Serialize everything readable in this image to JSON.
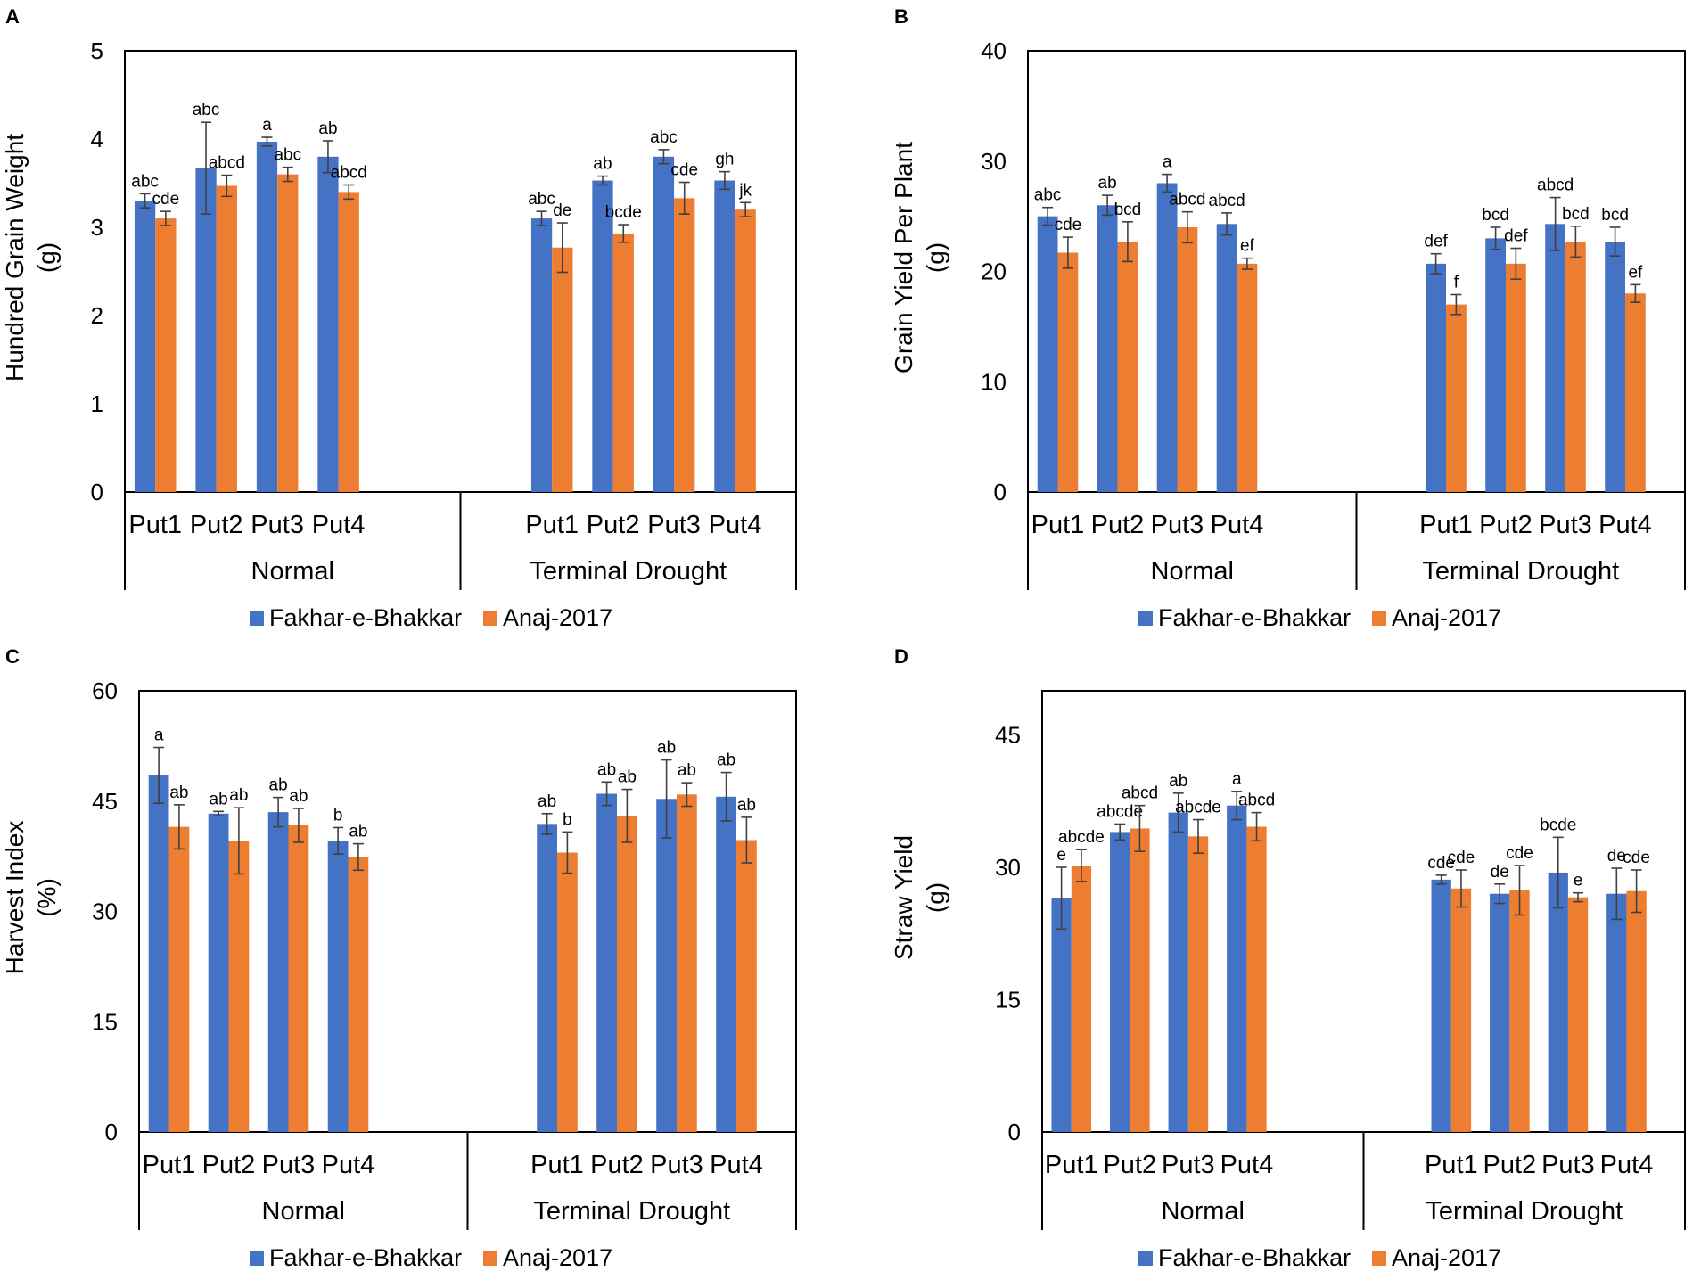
{
  "colors": {
    "series1": "#4472C4",
    "series2": "#ED7D31",
    "axis": "#000000",
    "error": "#404040"
  },
  "categories": [
    "Put1",
    "Put2",
    "Put3",
    "Put4",
    "Put1",
    "Put2",
    "Put3",
    "Put4"
  ],
  "groups": [
    "Normal",
    "Terminal Drought"
  ],
  "legend": [
    "Fakhar-e-Bhakkar",
    "Anaj-2017"
  ],
  "chart_data": [
    {
      "panel": "A",
      "type": "bar",
      "ylabel": "Hundred Grain Weight",
      "yunit": "(g)",
      "ylim": [
        0,
        5
      ],
      "yticks": [
        0,
        1,
        2,
        3,
        4,
        5
      ],
      "series": [
        {
          "name": "Fakhar-e-Bhakkar",
          "values": [
            3.3,
            3.67,
            3.97,
            3.8,
            3.1,
            3.53,
            3.8,
            3.53
          ],
          "errors": [
            0.08,
            0.52,
            0.05,
            0.18,
            0.08,
            0.05,
            0.08,
            0.1
          ],
          "labels": [
            "abc",
            "abc",
            "a",
            "ab",
            "abc",
            "ab",
            "abc",
            "gh"
          ]
        },
        {
          "name": "Anaj-2017",
          "values": [
            3.1,
            3.47,
            3.6,
            3.4,
            2.77,
            2.93,
            3.33,
            3.2
          ],
          "errors": [
            0.08,
            0.12,
            0.08,
            0.08,
            0.28,
            0.1,
            0.18,
            0.08
          ],
          "labels": [
            "cde",
            "abcd",
            "abc",
            "abcd",
            "de",
            "bcde",
            "cde",
            "jk"
          ]
        }
      ]
    },
    {
      "panel": "B",
      "type": "bar",
      "ylabel": "Grain Yield Per Plant",
      "yunit": "(g)",
      "ylim": [
        0,
        40
      ],
      "yticks": [
        0,
        10,
        20,
        30,
        40
      ],
      "series": [
        {
          "name": "Fakhar-e-Bhakkar",
          "values": [
            25.0,
            26.0,
            28.0,
            24.3,
            20.7,
            23.0,
            24.3,
            22.7
          ],
          "errors": [
            0.8,
            0.9,
            0.8,
            1.0,
            0.9,
            1.0,
            2.4,
            1.3
          ],
          "labels": [
            "abc",
            "ab",
            "a",
            "abcd",
            "def",
            "bcd",
            "abcd",
            "bcd"
          ]
        },
        {
          "name": "Anaj-2017",
          "values": [
            21.7,
            22.7,
            24.0,
            20.7,
            17.0,
            20.7,
            22.7,
            18.0
          ],
          "errors": [
            1.4,
            1.8,
            1.4,
            0.5,
            0.9,
            1.4,
            1.4,
            0.8
          ],
          "labels": [
            "cde",
            "bcd",
            "abcd",
            "ef",
            "f",
            "def",
            "bcd",
            "ef"
          ]
        }
      ]
    },
    {
      "panel": "C",
      "type": "bar",
      "ylabel": "Harvest Index",
      "yunit": "(%)",
      "ylim": [
        0,
        60
      ],
      "yticks": [
        0,
        15,
        30,
        45,
        60
      ],
      "series": [
        {
          "name": "Fakhar-e-Bhakkar",
          "values": [
            48.5,
            43.3,
            43.5,
            39.6,
            41.9,
            46.0,
            45.3,
            45.6
          ],
          "errors": [
            3.8,
            0.3,
            2.0,
            1.8,
            1.4,
            1.6,
            5.3,
            3.3
          ],
          "labels": [
            "a",
            "ab",
            "ab",
            "b",
            "ab",
            "ab",
            "ab",
            "ab"
          ]
        },
        {
          "name": "Anaj-2017",
          "values": [
            41.5,
            39.6,
            41.7,
            37.4,
            38.0,
            43.0,
            45.9,
            39.7
          ],
          "errors": [
            3.0,
            4.5,
            2.3,
            1.8,
            2.8,
            3.6,
            1.6,
            3.1
          ],
          "labels": [
            "ab",
            "ab",
            "ab",
            "ab",
            "b",
            "ab",
            "ab",
            "ab"
          ]
        }
      ]
    },
    {
      "panel": "D",
      "type": "bar",
      "ylabel": "Straw Yield",
      "yunit": "(g)",
      "ylim": [
        0,
        50
      ],
      "yticks": [
        0,
        15,
        30,
        45
      ],
      "series": [
        {
          "name": "Fakhar-e-Bhakkar",
          "values": [
            26.5,
            34.0,
            36.2,
            37.0,
            28.6,
            27.0,
            29.4,
            27.0
          ],
          "errors": [
            3.5,
            0.9,
            2.2,
            1.6,
            0.5,
            1.1,
            4.0,
            2.9
          ],
          "labels": [
            "e",
            "abcde",
            "ab",
            "a",
            "cde",
            "de",
            "bcde",
            "de"
          ]
        },
        {
          "name": "Anaj-2017",
          "values": [
            30.2,
            34.4,
            33.5,
            34.6,
            27.6,
            27.4,
            26.6,
            27.3
          ],
          "errors": [
            1.8,
            2.6,
            1.9,
            1.6,
            2.1,
            2.8,
            0.5,
            2.4
          ],
          "labels": [
            "abcde",
            "abcd",
            "abcde",
            "abcd",
            "cde",
            "cde",
            "e",
            "cde"
          ]
        }
      ]
    }
  ]
}
